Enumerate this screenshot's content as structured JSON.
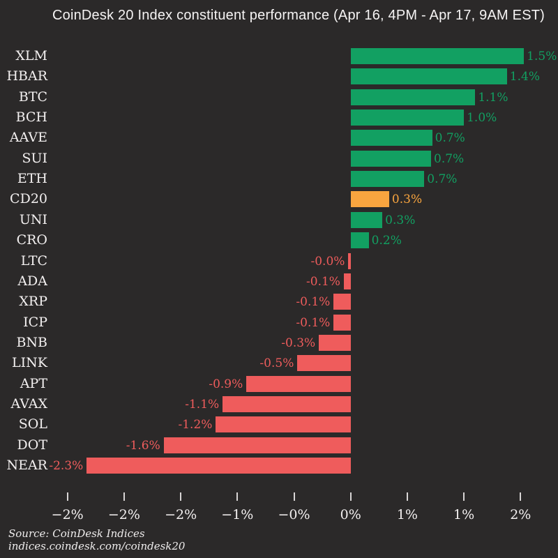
{
  "colors": {
    "background": "#2b2929",
    "positive": "#12a062",
    "negative": "#ef5c5c",
    "highlight": "#f9a53f",
    "text": "#f3f0f0",
    "tick_mark": "#d8d5d5"
  },
  "source": {
    "line1": "Source: CoinDesk Indices",
    "line2": "indices.coindesk.com/coindesk20"
  },
  "chart_data": {
    "type": "bar",
    "orientation": "horizontal",
    "title": "CoinDesk 20 Index constituent performance (Apr 16, 4PM - Apr 17, 9AM EST)",
    "categories": [
      "XLM",
      "HBAR",
      "BTC",
      "BCH",
      "AAVE",
      "SUI",
      "ETH",
      "CD20",
      "UNI",
      "CRO",
      "LTC",
      "ADA",
      "XRP",
      "ICP",
      "BNB",
      "LINK",
      "APT",
      "AVAX",
      "SOL",
      "DOT",
      "NEAR"
    ],
    "values": [
      1.53,
      1.38,
      1.1,
      1.0,
      0.72,
      0.71,
      0.65,
      0.34,
      0.28,
      0.16,
      -0.02,
      -0.06,
      -0.15,
      -0.15,
      -0.28,
      -0.47,
      -0.92,
      -1.13,
      -1.19,
      -1.65,
      -2.33
    ],
    "value_labels": [
      "1.5%",
      "1.4%",
      "1.1%",
      "1.0%",
      "0.7%",
      "0.7%",
      "0.7%",
      "0.3%",
      "0.3%",
      "0.2%",
      "-0.0%",
      "-0.1%",
      "-0.1%",
      "-0.1%",
      "-0.3%",
      "-0.5%",
      "-0.9%",
      "-1.1%",
      "-1.2%",
      "-1.6%",
      "-2.3%"
    ],
    "bar_roles": [
      "positive",
      "positive",
      "positive",
      "positive",
      "positive",
      "positive",
      "positive",
      "highlight",
      "positive",
      "positive",
      "negative",
      "negative",
      "negative",
      "negative",
      "negative",
      "negative",
      "negative",
      "negative",
      "negative",
      "negative",
      "negative"
    ],
    "highlight_category": "CD20",
    "x_ticks": {
      "values": [
        -2.5,
        -2.0,
        -1.5,
        -1.0,
        -0.5,
        0.0,
        0.5,
        1.0,
        1.5
      ],
      "labels": [
        "−2%",
        "−2%",
        "−2%",
        "−1%",
        "−0%",
        "0%",
        "1%",
        "1%",
        "2%"
      ]
    },
    "xlim": [
      -2.63,
      1.64
    ],
    "grid": false,
    "legend": "none"
  }
}
